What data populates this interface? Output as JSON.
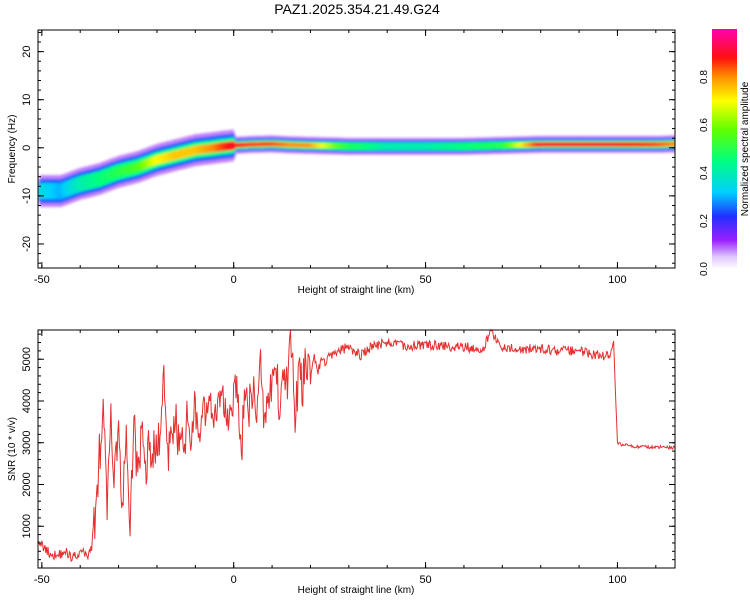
{
  "title": "PAZ1.2025.354.21.49.G24",
  "chart_data": [
    {
      "type": "heatmap",
      "xlabel": "Height of straight line (km)",
      "ylabel": "Frequency (Hz)",
      "xlim": [
        -51,
        115
      ],
      "ylim": [
        -25,
        24.5
      ],
      "xticks": [
        -50,
        0,
        50,
        100
      ],
      "yticks": [
        -20,
        -10,
        0,
        10,
        20
      ],
      "grid": false,
      "ridge": {
        "description_points_x": [
          -50,
          -45,
          -40,
          -35,
          -30,
          -25,
          -20,
          -15,
          -10,
          -5,
          0,
          5,
          10,
          15,
          20,
          30,
          40,
          50,
          60,
          70,
          80,
          90,
          100,
          110,
          115
        ],
        "frequency": [
          -9,
          -9,
          -7.5,
          -6.5,
          -5,
          -4,
          -2.5,
          -1.5,
          -0.5,
          0,
          0.5,
          0.7,
          0.8,
          0.6,
          0.5,
          0.3,
          0.3,
          0.3,
          0.3,
          0.5,
          0.7,
          0.7,
          0.7,
          0.7,
          0.8
        ],
        "amplitude": [
          0.35,
          0.3,
          0.4,
          0.45,
          0.5,
          0.55,
          0.7,
          0.75,
          0.75,
          0.8,
          0.9,
          0.85,
          0.85,
          0.8,
          0.8,
          0.5,
          0.4,
          0.4,
          0.45,
          0.5,
          0.9,
          0.9,
          0.9,
          0.85,
          0.8
        ]
      },
      "colorbar": {
        "label": "Normalized spectral amplitude",
        "ticks": [
          0.0,
          0.2,
          0.4,
          0.6,
          0.8
        ],
        "tick_labels": [
          "0.0",
          "0.2",
          "0.4",
          "0.6",
          "0.8"
        ],
        "range": [
          0,
          1
        ]
      }
    },
    {
      "type": "line",
      "xlabel": "Height of straight line (km)",
      "ylabel": "SNR (10 * v/v)",
      "xlim": [
        -51,
        115
      ],
      "ylim": [
        0,
        5700
      ],
      "xticks": [
        -50,
        0,
        50,
        100
      ],
      "yticks": [
        1000,
        2000,
        3000,
        4000,
        5000
      ],
      "grid": false,
      "series": [
        {
          "color": "#e53030",
          "x": [
            -51,
            -50,
            -48,
            -46,
            -44,
            -42,
            -40,
            -38,
            -37,
            -36,
            -35,
            -34,
            -33,
            -32,
            -31,
            -30,
            -29,
            -28,
            -27,
            -26,
            -25,
            -24,
            -23,
            -22,
            -21,
            -20,
            -19,
            -18,
            -17,
            -16,
            -15,
            -14,
            -13,
            -12,
            -11,
            -10,
            -9,
            -8,
            -7,
            -6,
            -5,
            -4,
            -3,
            -2,
            -1,
            0,
            1,
            2,
            3,
            4,
            5,
            6,
            7,
            8,
            9,
            10,
            11,
            12,
            13,
            14,
            15,
            16,
            17,
            18,
            19,
            20,
            21,
            22,
            23,
            24,
            25,
            27,
            30,
            33,
            36,
            40,
            45,
            50,
            55,
            60,
            65,
            67,
            70,
            75,
            80,
            85,
            90,
            95,
            98,
            99,
            100,
            101,
            105,
            110,
            115
          ],
          "y": [
            750,
            550,
            350,
            300,
            400,
            250,
            380,
            300,
            600,
            1400,
            2700,
            3700,
            1500,
            3400,
            2200,
            3600,
            1100,
            3500,
            600,
            3800,
            2000,
            3300,
            2400,
            2900,
            2800,
            2900,
            3300,
            4600,
            2700,
            3300,
            3400,
            3000,
            3000,
            3600,
            3300,
            4000,
            2700,
            3500,
            4000,
            3900,
            3600,
            3700,
            4300,
            3900,
            3700,
            4100,
            4200,
            2700,
            4400,
            3800,
            4200,
            3900,
            4900,
            3600,
            4300,
            4200,
            4800,
            3900,
            4700,
            4400,
            5400,
            3700,
            4600,
            4400,
            5000,
            4500,
            5100,
            4700,
            5000,
            4900,
            5100,
            5200,
            5300,
            5100,
            5300,
            5400,
            5300,
            5350,
            5300,
            5300,
            5250,
            5700,
            5300,
            5250,
            5250,
            5200,
            5200,
            5100,
            5050,
            5400,
            3000,
            2950,
            2900,
            2900,
            2880
          ]
        }
      ]
    }
  ]
}
